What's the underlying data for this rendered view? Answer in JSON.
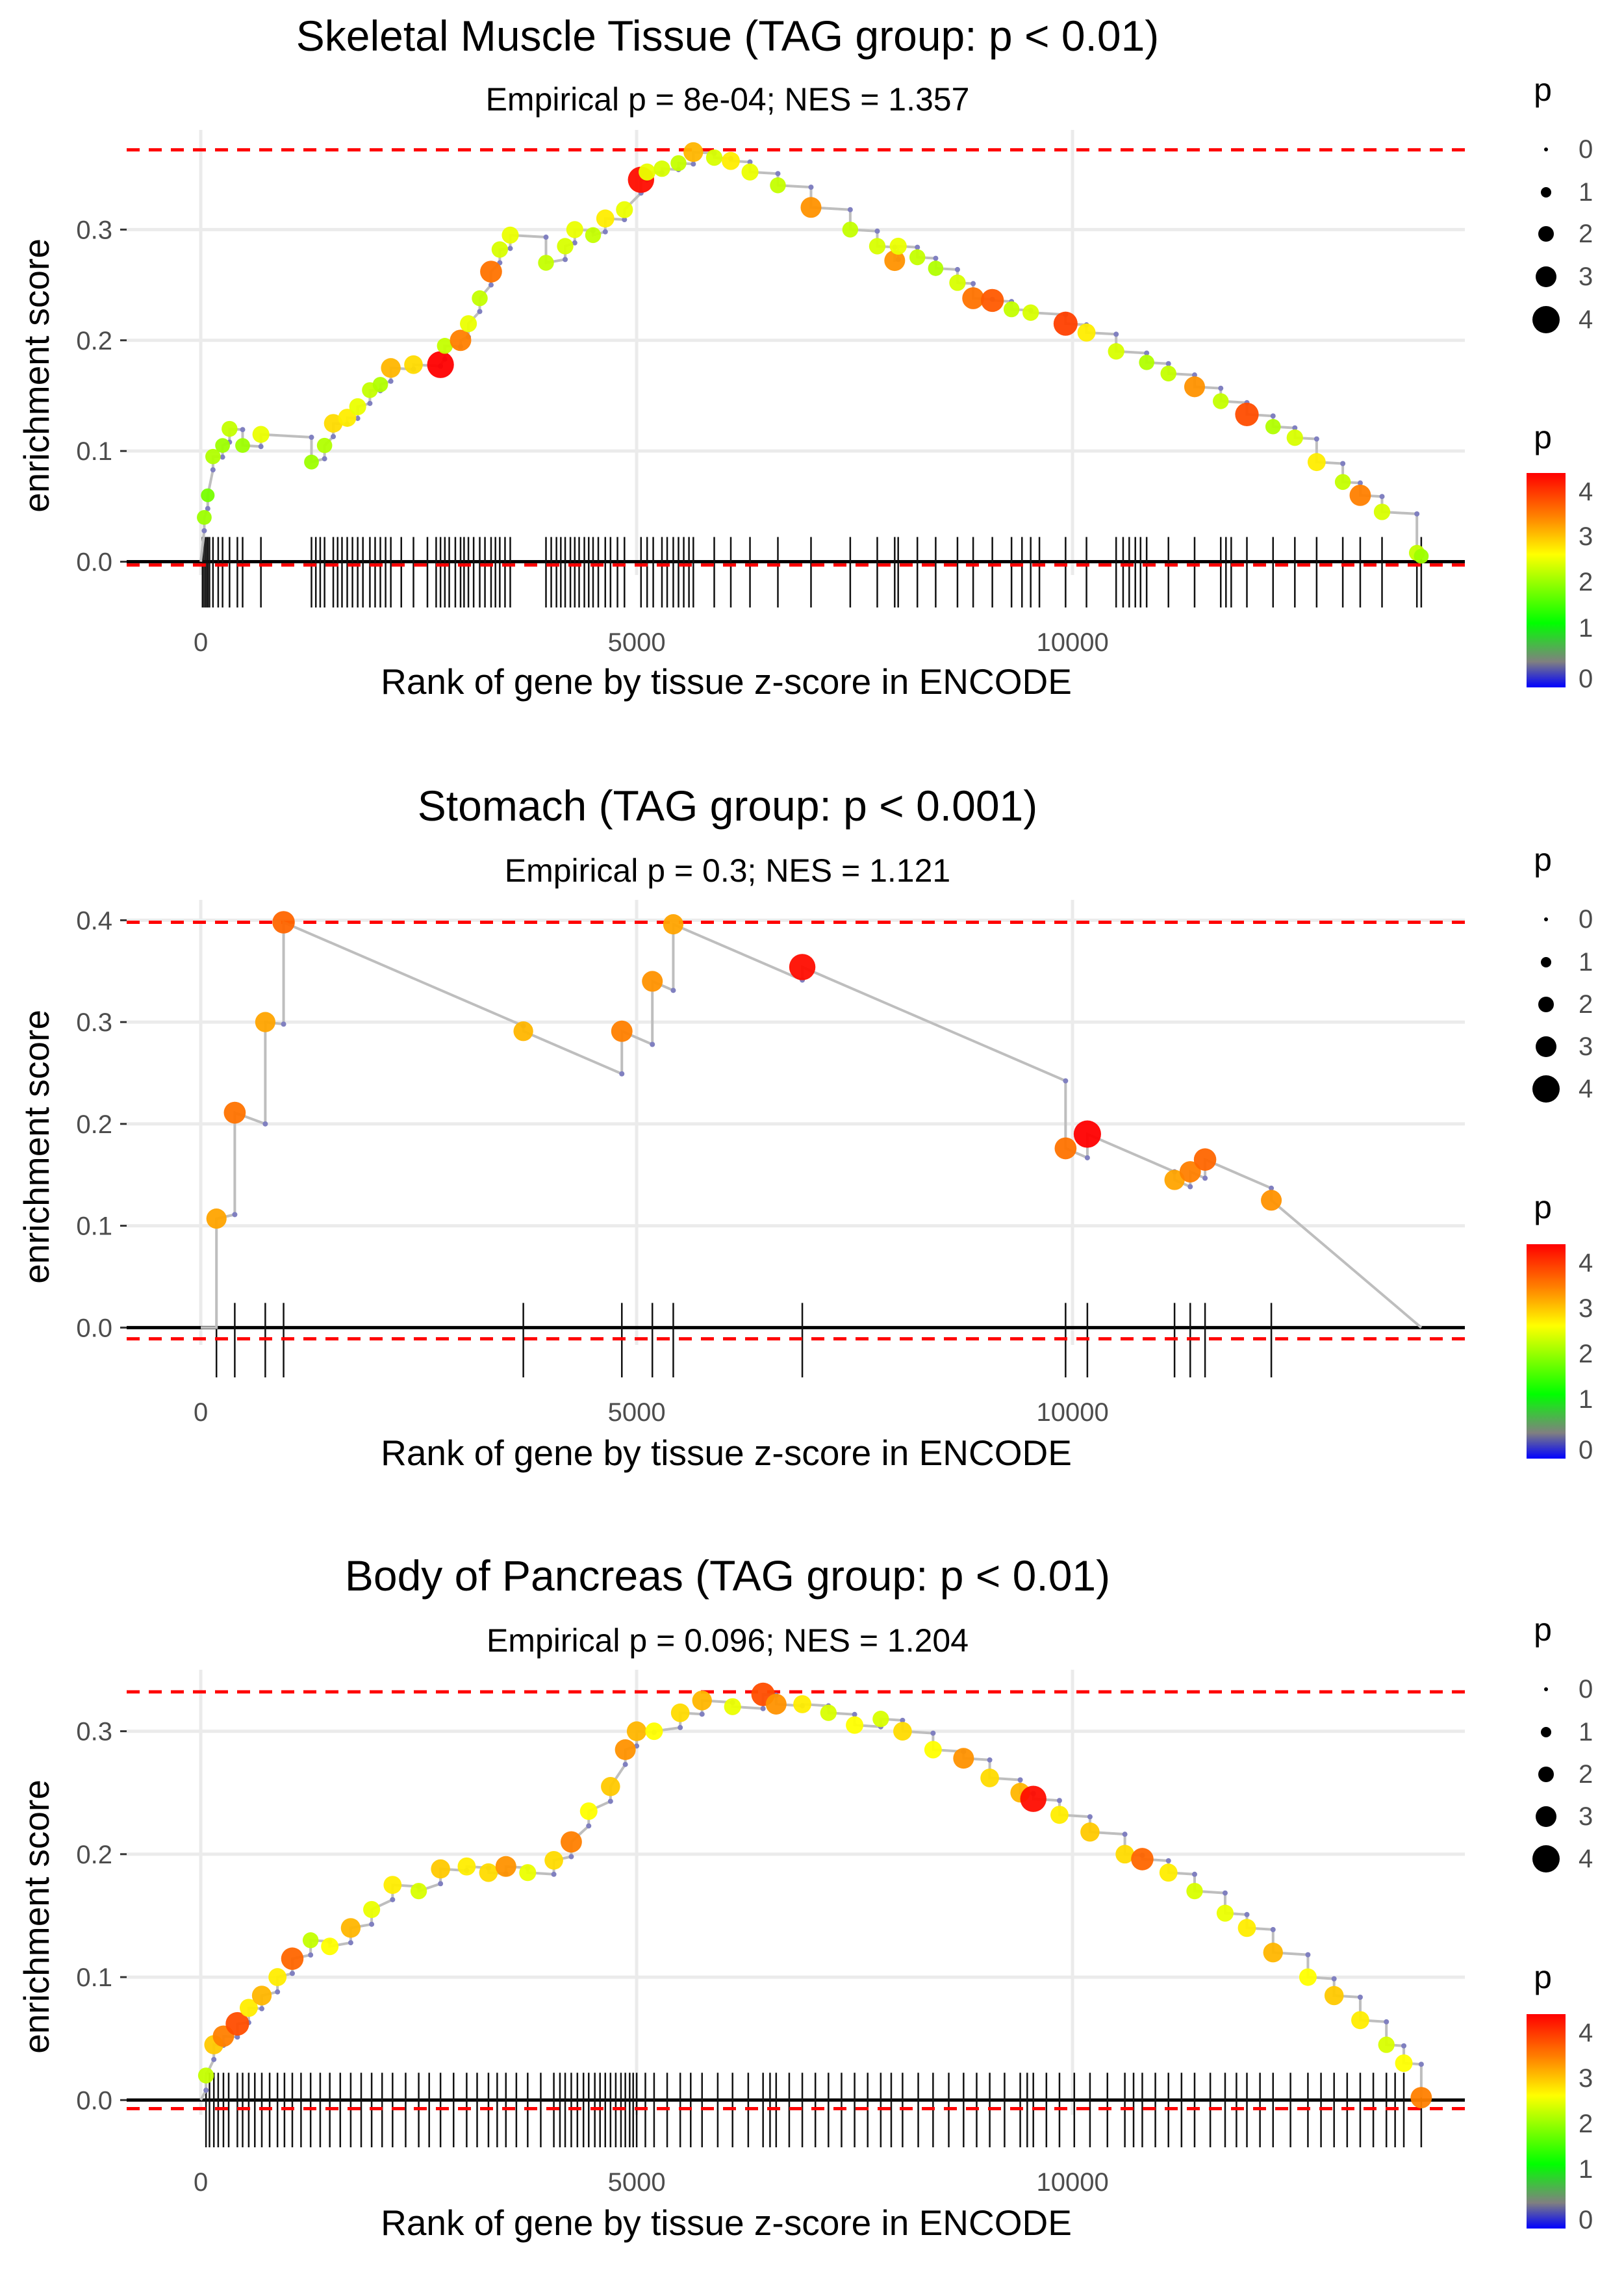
{
  "chart_data": [
    {
      "type": "line",
      "title": "Skeletal Muscle Tissue (TAG group: p < 0.01)",
      "subtitle": "Empirical p = 8e-04; NES = 1.357",
      "xlabel": "Rank of gene by tissue z-score in ENCODE",
      "ylabel": "enrichment score",
      "xlim": [
        -850,
        14500
      ],
      "ylim": [
        -0.012,
        0.39
      ],
      "xticks": [
        0,
        5000,
        10000
      ],
      "xtick_labels": [
        "0",
        "5000",
        "10000"
      ],
      "yticks": [
        0.0,
        0.1,
        0.2,
        0.3
      ],
      "ytick_labels": [
        "0.0",
        "0.1",
        "0.2",
        "0.3"
      ],
      "max_es": 0.372,
      "min_es": -0.003,
      "x_end": 14000,
      "points": [
        [
          0,
          0,
          0
        ],
        [
          40,
          0.04,
          2
        ],
        [
          80,
          0.06,
          1.8
        ],
        [
          140,
          0.095,
          2.1
        ],
        [
          250,
          0.105,
          2
        ],
        [
          330,
          0.12,
          2.2
        ],
        [
          480,
          0.105,
          2
        ],
        [
          690,
          0.115,
          2.4
        ],
        [
          1270,
          0.09,
          2
        ],
        [
          1420,
          0.105,
          2.1
        ],
        [
          1520,
          0.125,
          2.7
        ],
        [
          1680,
          0.13,
          2.6
        ],
        [
          1800,
          0.14,
          2.4
        ],
        [
          1940,
          0.155,
          2.2
        ],
        [
          2060,
          0.16,
          2.1
        ],
        [
          2180,
          0.175,
          2.9
        ],
        [
          2440,
          0.178,
          2.7
        ],
        [
          2750,
          0.178,
          4.2
        ],
        [
          2800,
          0.195,
          2.2
        ],
        [
          2980,
          0.2,
          3.2
        ],
        [
          3070,
          0.215,
          2.4
        ],
        [
          3200,
          0.238,
          2.2
        ],
        [
          3330,
          0.262,
          3.3
        ],
        [
          3430,
          0.282,
          2.3
        ],
        [
          3550,
          0.295,
          2.4
        ],
        [
          3960,
          0.27,
          2.2
        ],
        [
          4180,
          0.285,
          2.3
        ],
        [
          4290,
          0.3,
          2.4
        ],
        [
          4500,
          0.295,
          2.2
        ],
        [
          4640,
          0.31,
          2.6
        ],
        [
          4860,
          0.318,
          2.4
        ],
        [
          5050,
          0.345,
          4.1
        ],
        [
          5120,
          0.352,
          2.4
        ],
        [
          5290,
          0.355,
          2.3
        ],
        [
          5480,
          0.36,
          2.2
        ],
        [
          5650,
          0.37,
          2.9
        ],
        [
          5890,
          0.365,
          2.3
        ],
        [
          6080,
          0.362,
          2.6
        ],
        [
          6300,
          0.352,
          2.4
        ],
        [
          6620,
          0.34,
          2.2
        ],
        [
          7000,
          0.32,
          3.1
        ],
        [
          7450,
          0.3,
          2.2
        ],
        [
          7760,
          0.285,
          2.3
        ],
        [
          7960,
          0.272,
          3.1
        ],
        [
          8000,
          0.285,
          2.4
        ],
        [
          8220,
          0.275,
          2.2
        ],
        [
          8430,
          0.265,
          2.1
        ],
        [
          8680,
          0.252,
          2.3
        ],
        [
          8860,
          0.238,
          3.3
        ],
        [
          9080,
          0.236,
          3.5
        ],
        [
          9300,
          0.228,
          2.2
        ],
        [
          9520,
          0.225,
          2.3
        ],
        [
          9920,
          0.215,
          3.7
        ],
        [
          10160,
          0.207,
          2.6
        ],
        [
          10500,
          0.19,
          2.3
        ],
        [
          10850,
          0.18,
          2.1
        ],
        [
          11100,
          0.17,
          2.2
        ],
        [
          11400,
          0.158,
          3.1
        ],
        [
          11700,
          0.145,
          2.2
        ],
        [
          12000,
          0.133,
          3.6
        ],
        [
          12300,
          0.122,
          2.1
        ],
        [
          12550,
          0.112,
          2.3
        ],
        [
          12800,
          0.09,
          2.6
        ],
        [
          13100,
          0.072,
          2.2
        ],
        [
          13300,
          0.06,
          3.2
        ],
        [
          13550,
          0.045,
          2.3
        ],
        [
          13950,
          0.008,
          2.2
        ],
        [
          14000,
          0.005,
          2
        ]
      ],
      "gene_ranks": [
        20,
        40,
        60,
        80,
        100,
        140,
        200,
        250,
        330,
        420,
        480,
        690,
        1270,
        1320,
        1370,
        1420,
        1520,
        1570,
        1620,
        1680,
        1740,
        1800,
        1860,
        1940,
        2000,
        2060,
        2120,
        2180,
        2300,
        2440,
        2600,
        2700,
        2750,
        2800,
        2850,
        2920,
        2980,
        3020,
        3070,
        3130,
        3200,
        3260,
        3330,
        3380,
        3430,
        3490,
        3550,
        3960,
        4020,
        4080,
        4130,
        4180,
        4240,
        4290,
        4340,
        4400,
        4450,
        4500,
        4560,
        4640,
        4700,
        4780,
        4860,
        5050,
        5120,
        5190,
        5290,
        5350,
        5420,
        5480,
        5540,
        5600,
        5650,
        5890,
        6080,
        6300,
        6620,
        7000,
        7450,
        7760,
        7960,
        8000,
        8220,
        8430,
        8680,
        8860,
        9080,
        9300,
        9420,
        9520,
        9620,
        9920,
        10160,
        10500,
        10580,
        10650,
        10720,
        10780,
        10850,
        11100,
        11400,
        11700,
        11760,
        11820,
        12000,
        12300,
        12550,
        12800,
        13100,
        13300,
        13550,
        13950,
        14000
      ]
    },
    {
      "type": "line",
      "title": "Stomach (TAG group: p < 0.001)",
      "subtitle": "Empirical p = 0.3; NES = 1.121",
      "xlabel": "Rank of gene by tissue z-score in ENCODE",
      "ylabel": "enrichment score",
      "xlim": [
        -850,
        14500
      ],
      "ylim": [
        -0.017,
        0.42
      ],
      "xticks": [
        0,
        5000,
        10000
      ],
      "xtick_labels": [
        "0",
        "5000",
        "10000"
      ],
      "yticks": [
        0.0,
        0.1,
        0.2,
        0.3,
        0.4
      ],
      "ytick_labels": [
        "0.0",
        "0.1",
        "0.2",
        "0.3",
        "0.4"
      ],
      "max_es": 0.398,
      "min_es": -0.011,
      "x_end": 14000,
      "points": [
        [
          180,
          0.107,
          3.0
        ],
        [
          390,
          0.211,
          3.3
        ],
        [
          740,
          0.3,
          3.0
        ],
        [
          950,
          0.398,
          3.4
        ],
        [
          3700,
          0.291,
          2.9
        ],
        [
          4830,
          0.291,
          3.2
        ],
        [
          5180,
          0.34,
          3.1
        ],
        [
          5420,
          0.396,
          3.0
        ],
        [
          6900,
          0.354,
          4.1
        ],
        [
          9920,
          0.176,
          3.3
        ],
        [
          10170,
          0.19,
          4.3
        ],
        [
          11170,
          0.145,
          3.0
        ],
        [
          11350,
          0.153,
          3.2
        ],
        [
          11520,
          0.165,
          3.4
        ],
        [
          12280,
          0.125,
          3.1
        ]
      ],
      "gene_ranks": [
        180,
        390,
        740,
        950,
        3700,
        4830,
        5180,
        5420,
        6900,
        9920,
        10170,
        11170,
        11350,
        11520,
        12280
      ]
    },
    {
      "type": "line",
      "title": "Body of Pancreas (TAG group: p < 0.01)",
      "subtitle": "Empirical p = 0.096; NES = 1.204",
      "xlabel": "Rank of gene by tissue z-score in ENCODE",
      "ylabel": "enrichment score",
      "xlim": [
        -850,
        14500
      ],
      "ylim": [
        -0.012,
        0.35
      ],
      "xticks": [
        0,
        5000,
        10000
      ],
      "xtick_labels": [
        "0",
        "5000",
        "10000"
      ],
      "yticks": [
        0.0,
        0.1,
        0.2,
        0.3
      ],
      "ytick_labels": [
        "0.0",
        "0.1",
        "0.2",
        "0.3"
      ],
      "max_es": 0.332,
      "min_es": -0.007,
      "x_end": 14000,
      "points": [
        [
          0,
          0,
          0
        ],
        [
          60,
          0.02,
          2.2
        ],
        [
          150,
          0.045,
          2.8
        ],
        [
          260,
          0.052,
          3.2
        ],
        [
          420,
          0.062,
          3.6
        ],
        [
          550,
          0.075,
          2.6
        ],
        [
          700,
          0.085,
          2.9
        ],
        [
          880,
          0.1,
          2.6
        ],
        [
          1050,
          0.115,
          3.4
        ],
        [
          1260,
          0.13,
          2.2
        ],
        [
          1480,
          0.125,
          2.5
        ],
        [
          1720,
          0.14,
          2.9
        ],
        [
          1960,
          0.155,
          2.4
        ],
        [
          2200,
          0.175,
          2.6
        ],
        [
          2500,
          0.17,
          2.3
        ],
        [
          2750,
          0.188,
          2.8
        ],
        [
          3050,
          0.19,
          2.6
        ],
        [
          3300,
          0.185,
          2.7
        ],
        [
          3500,
          0.19,
          3.1
        ],
        [
          3750,
          0.185,
          2.4
        ],
        [
          4050,
          0.195,
          2.7
        ],
        [
          4250,
          0.21,
          3.2
        ],
        [
          4450,
          0.235,
          2.5
        ],
        [
          4700,
          0.255,
          2.8
        ],
        [
          4870,
          0.285,
          3.1
        ],
        [
          5000,
          0.3,
          2.9
        ],
        [
          5200,
          0.3,
          2.5
        ],
        [
          5500,
          0.315,
          2.7
        ],
        [
          5750,
          0.325,
          2.9
        ],
        [
          6100,
          0.32,
          2.4
        ],
        [
          6450,
          0.33,
          3.6
        ],
        [
          6600,
          0.322,
          3.1
        ],
        [
          6900,
          0.322,
          2.6
        ],
        [
          7200,
          0.315,
          2.3
        ],
        [
          7500,
          0.305,
          2.5
        ],
        [
          7800,
          0.31,
          2.3
        ],
        [
          8050,
          0.3,
          2.7
        ],
        [
          8400,
          0.285,
          2.5
        ],
        [
          8750,
          0.278,
          3.1
        ],
        [
          9050,
          0.262,
          2.7
        ],
        [
          9400,
          0.25,
          2.9
        ],
        [
          9550,
          0.245,
          4.1
        ],
        [
          9850,
          0.232,
          2.6
        ],
        [
          10200,
          0.218,
          2.8
        ],
        [
          10600,
          0.2,
          2.7
        ],
        [
          10800,
          0.196,
          3.4
        ],
        [
          11100,
          0.185,
          2.6
        ],
        [
          11400,
          0.17,
          2.3
        ],
        [
          11750,
          0.152,
          2.4
        ],
        [
          12000,
          0.14,
          2.6
        ],
        [
          12300,
          0.12,
          2.9
        ],
        [
          12700,
          0.1,
          2.5
        ],
        [
          13000,
          0.085,
          2.8
        ],
        [
          13300,
          0.065,
          2.6
        ],
        [
          13600,
          0.045,
          2.3
        ],
        [
          13800,
          0.03,
          2.5
        ],
        [
          14000,
          0.002,
          3.2
        ]
      ],
      "gene_ranks": [
        60,
        100,
        150,
        200,
        260,
        320,
        420,
        480,
        550,
        620,
        700,
        790,
        880,
        960,
        1050,
        1150,
        1260,
        1370,
        1480,
        1600,
        1720,
        1840,
        1960,
        2080,
        2200,
        2350,
        2500,
        2620,
        2750,
        2900,
        3050,
        3170,
        3300,
        3400,
        3500,
        3620,
        3750,
        3900,
        4050,
        4120,
        4180,
        4250,
        4320,
        4390,
        4450,
        4520,
        4580,
        4640,
        4700,
        4760,
        4820,
        4870,
        4920,
        4960,
        5000,
        5100,
        5200,
        5350,
        5500,
        5620,
        5750,
        5930,
        6100,
        6280,
        6450,
        6530,
        6600,
        6750,
        6900,
        7050,
        7200,
        7350,
        7500,
        7650,
        7800,
        7920,
        8050,
        8230,
        8400,
        8580,
        8750,
        8900,
        9050,
        9220,
        9400,
        9480,
        9550,
        9700,
        9850,
        10020,
        10200,
        10400,
        10600,
        10700,
        10800,
        10950,
        11100,
        11250,
        11400,
        11580,
        11750,
        11880,
        12000,
        12150,
        12300,
        12500,
        12700,
        12850,
        13000,
        13150,
        13300,
        13450,
        13600,
        13700,
        13800,
        14000
      ]
    }
  ],
  "legend": {
    "size_title": "p",
    "size_labels": [
      "0",
      "1",
      "2",
      "3",
      "4"
    ],
    "color_title": "p",
    "color_labels": [
      "4",
      "3",
      "2",
      "1",
      "0"
    ],
    "size_values": [
      0,
      1,
      2,
      3,
      4
    ],
    "color_values": [
      4,
      3,
      2,
      1,
      0
    ]
  },
  "colors": {
    "max_line": "#ff0000",
    "zero_line": "#000000",
    "path": "#bebebe",
    "grid": "#ebebeb",
    "gradient": [
      "#0000ff",
      "#808080",
      "#00ff00",
      "#ffff00",
      "#ff8000",
      "#ff0000"
    ]
  }
}
